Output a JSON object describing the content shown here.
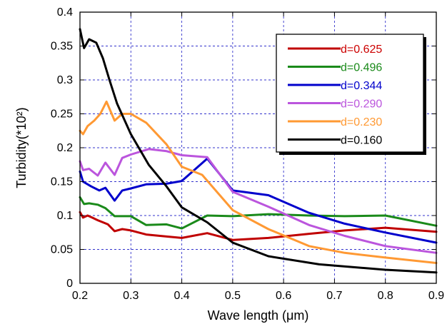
{
  "chart_data": {
    "type": "line",
    "title": "",
    "xlabel": "Wave length (μm)",
    "ylabel": "Turbidity(*10²)",
    "xlim": [
      0.2,
      0.9
    ],
    "ylim": [
      0,
      0.4
    ],
    "xticks": [
      0.2,
      0.3,
      0.4,
      0.5,
      0.6,
      0.7,
      0.8,
      0.9
    ],
    "yticks": [
      0,
      0.05,
      0.1,
      0.15,
      0.2,
      0.25,
      0.3,
      0.35,
      0.4
    ],
    "xtick_labels": [
      "0.2",
      "0.3",
      "0.4",
      "0.5",
      "0.6",
      "0.7",
      "0.8",
      "0.9"
    ],
    "ytick_labels": [
      "0",
      "0.05",
      "0.1",
      "0.15",
      "0.2",
      "0.25",
      "0.3",
      "0.35",
      "0.4"
    ],
    "grid": true,
    "legend_position": "top-right",
    "series": [
      {
        "name": "d=0.625",
        "color": "#c00000",
        "label_color": "#cc0000",
        "x": [
          0.2,
          0.206,
          0.215,
          0.224,
          0.235,
          0.245,
          0.255,
          0.268,
          0.283,
          0.3,
          0.33,
          0.37,
          0.4,
          0.45,
          0.5,
          0.57,
          0.65,
          0.72,
          0.8,
          0.9
        ],
        "y": [
          0.105,
          0.097,
          0.1,
          0.097,
          0.093,
          0.09,
          0.087,
          0.077,
          0.08,
          0.078,
          0.072,
          0.069,
          0.067,
          0.074,
          0.064,
          0.067,
          0.073,
          0.078,
          0.082,
          0.076
        ]
      },
      {
        "name": "d=0.496",
        "color": "#1a8a1a",
        "label_color": "#1a8a1a",
        "x": [
          0.2,
          0.208,
          0.218,
          0.235,
          0.25,
          0.268,
          0.3,
          0.33,
          0.37,
          0.4,
          0.45,
          0.5,
          0.57,
          0.65,
          0.72,
          0.8,
          0.9
        ],
        "y": [
          0.127,
          0.117,
          0.118,
          0.116,
          0.111,
          0.099,
          0.099,
          0.086,
          0.087,
          0.081,
          0.1,
          0.099,
          0.102,
          0.1,
          0.099,
          0.1,
          0.085
        ]
      },
      {
        "name": "d=0.344",
        "color": "#0000cc",
        "label_color": "#0000cc",
        "x": [
          0.2,
          0.206,
          0.222,
          0.238,
          0.25,
          0.268,
          0.283,
          0.3,
          0.33,
          0.37,
          0.4,
          0.45,
          0.5,
          0.57,
          0.65,
          0.72,
          0.8,
          0.9
        ],
        "y": [
          0.165,
          0.15,
          0.143,
          0.137,
          0.141,
          0.122,
          0.137,
          0.14,
          0.146,
          0.147,
          0.151,
          0.184,
          0.137,
          0.13,
          0.104,
          0.088,
          0.075,
          0.06
        ]
      },
      {
        "name": "d=0.290",
        "color": "#bb55dd",
        "label_color": "#bb55dd",
        "x": [
          0.2,
          0.206,
          0.218,
          0.235,
          0.25,
          0.268,
          0.283,
          0.3,
          0.335,
          0.37,
          0.4,
          0.45,
          0.5,
          0.57,
          0.65,
          0.72,
          0.8,
          0.9
        ],
        "y": [
          0.18,
          0.167,
          0.169,
          0.159,
          0.178,
          0.16,
          0.185,
          0.19,
          0.198,
          0.195,
          0.189,
          0.186,
          0.135,
          0.113,
          0.086,
          0.07,
          0.055,
          0.045
        ]
      },
      {
        "name": "d=0.230",
        "color": "#ff9933",
        "label_color": "#ff9933",
        "x": [
          0.2,
          0.206,
          0.215,
          0.228,
          0.24,
          0.252,
          0.268,
          0.283,
          0.3,
          0.33,
          0.37,
          0.4,
          0.44,
          0.5,
          0.57,
          0.65,
          0.72,
          0.8,
          0.9
        ],
        "y": [
          0.225,
          0.22,
          0.232,
          0.24,
          0.25,
          0.268,
          0.24,
          0.25,
          0.25,
          0.237,
          0.205,
          0.172,
          0.16,
          0.108,
          0.08,
          0.055,
          0.045,
          0.038,
          0.03
        ]
      },
      {
        "name": "d=0.160",
        "color": "#000000",
        "label_color": "#000000",
        "x": [
          0.2,
          0.208,
          0.218,
          0.232,
          0.245,
          0.258,
          0.273,
          0.3,
          0.335,
          0.37,
          0.4,
          0.45,
          0.5,
          0.57,
          0.67,
          0.8,
          0.9
        ],
        "y": [
          0.375,
          0.347,
          0.36,
          0.355,
          0.332,
          0.3,
          0.265,
          0.22,
          0.175,
          0.143,
          0.112,
          0.09,
          0.06,
          0.04,
          0.028,
          0.02,
          0.016
        ]
      }
    ]
  }
}
